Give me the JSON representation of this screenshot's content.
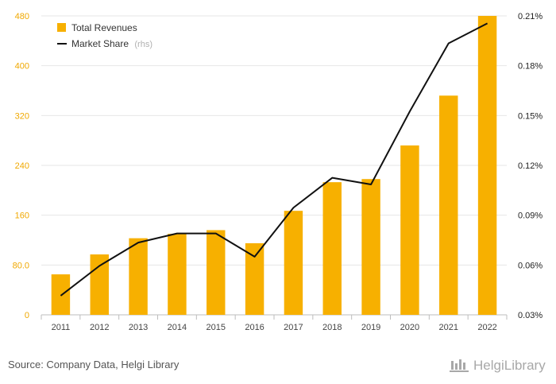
{
  "chart_data": {
    "type": "bar+line",
    "categories": [
      "2011",
      "2012",
      "2013",
      "2014",
      "2015",
      "2016",
      "2017",
      "2018",
      "2019",
      "2020",
      "2021",
      "2022"
    ],
    "series": [
      {
        "name": "Total Revenues",
        "type": "bar",
        "axis": "left",
        "color": "#f7b000",
        "values": [
          65,
          97,
          123,
          130,
          136,
          115,
          167,
          213,
          218,
          272,
          352,
          480
        ]
      },
      {
        "name": "Market Share",
        "name_suffix": "(rhs)",
        "type": "line",
        "axis": "right",
        "color": "#111111",
        "values": [
          0.0415,
          0.0595,
          0.0735,
          0.079,
          0.079,
          0.065,
          0.0945,
          0.1125,
          0.1085,
          0.1525,
          0.1935,
          0.2055
        ]
      }
    ],
    "y_left": {
      "ylim": [
        0,
        480
      ],
      "ticks": [
        0,
        80,
        160,
        240,
        320,
        400,
        480
      ],
      "tick_labels": [
        "0",
        "80.0",
        "160",
        "240",
        "320",
        "400",
        "480"
      ]
    },
    "y_right": {
      "ylim": [
        0.03,
        0.21
      ],
      "ticks": [
        0.03,
        0.06,
        0.09,
        0.12,
        0.15,
        0.18,
        0.21
      ],
      "tick_labels": [
        "0.03%",
        "0.06%",
        "0.09%",
        "0.12%",
        "0.15%",
        "0.18%",
        "0.21%"
      ]
    },
    "grid": true,
    "legend": "top-left"
  },
  "footer": {
    "source": "Source: Company Data, Helgi Library",
    "brand": "HelgiLibrary"
  }
}
